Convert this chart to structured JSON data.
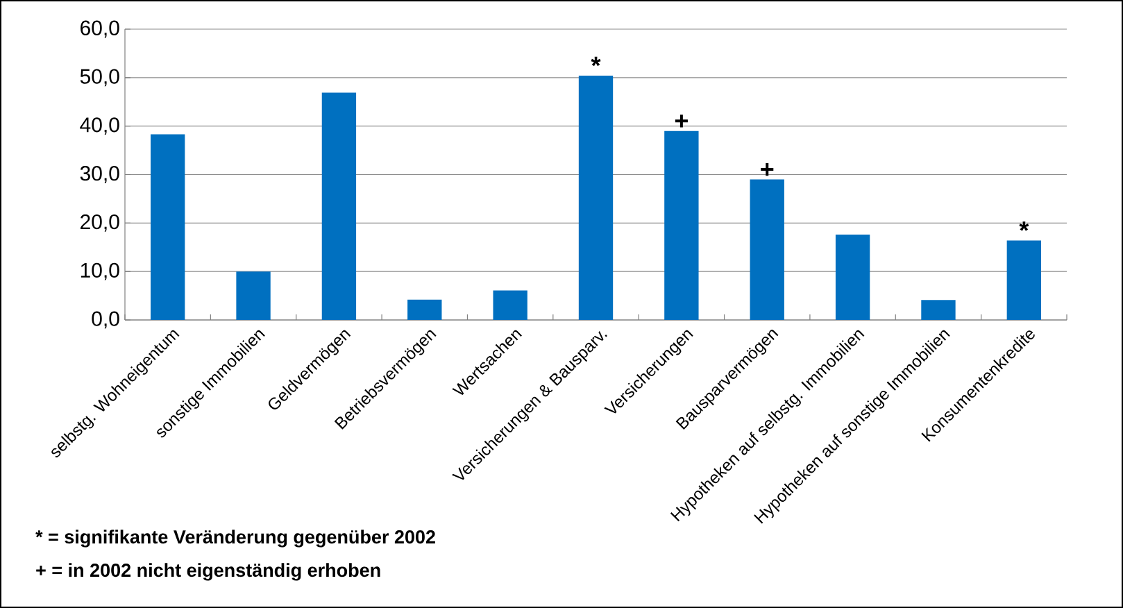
{
  "chart_data": {
    "type": "bar",
    "categories": [
      "selbstg. Wohneigentum",
      "sonstige Immobilien",
      "Geldvermögen",
      "Betriebsvermögen",
      "Wertsachen",
      "Versicherungen & Bausparv.",
      "Versicherungen",
      "Bausparvermögen",
      "Hypotheken auf selbstg. Immobilien",
      "Hypotheken auf sonstige Immobilien",
      "Konsumentenkredite"
    ],
    "values": [
      38.3,
      10.0,
      46.9,
      4.2,
      6.1,
      50.4,
      39.0,
      29.0,
      17.6,
      4.1,
      16.4
    ],
    "color": "#0070c0",
    "ylim": [
      0,
      60
    ],
    "yticks": [
      {
        "value": 0,
        "label": "0,0"
      },
      {
        "value": 10,
        "label": "10,0"
      },
      {
        "value": 20,
        "label": "20,0"
      },
      {
        "value": 30,
        "label": "30,0"
      },
      {
        "value": 40,
        "label": "40,0"
      },
      {
        "value": 50,
        "label": "50,0"
      },
      {
        "value": 60,
        "label": "60,0"
      }
    ],
    "grid": "y",
    "annotations": [
      {
        "text": "*",
        "x": "Versicherungen & Bausparv.",
        "y": 50.4
      },
      {
        "text": "+",
        "x": "Versicherungen",
        "y": 39.0
      },
      {
        "text": "+",
        "x": "Bausparvermögen",
        "y": 29.0
      },
      {
        "text": "*",
        "x": "Konsumentenkredite",
        "y": 16.4
      },
      "* = signifikante Veränderung gegenüber 2002",
      "+  = in 2002 nicht eigenständig erhoben"
    ]
  }
}
